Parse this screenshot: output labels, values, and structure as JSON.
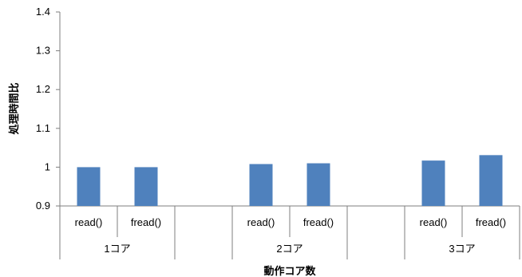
{
  "chart_data": {
    "type": "bar",
    "title": "",
    "xlabel": "動作コア数",
    "ylabel": "処理時間比",
    "ylim": [
      0.9,
      1.4
    ],
    "yticks": [
      "0.9",
      "1",
      "1.1",
      "1.2",
      "1.3",
      "1.4"
    ],
    "groups": [
      {
        "label": "1コア",
        "categories": [
          "read()",
          "fread()"
        ],
        "values": [
          1.0,
          1.0
        ]
      },
      {
        "label": "",
        "categories": [],
        "values": []
      },
      {
        "label": "2コア",
        "categories": [
          "read()",
          "fread()"
        ],
        "values": [
          1.008,
          1.01
        ]
      },
      {
        "label": "",
        "categories": [],
        "values": []
      },
      {
        "label": "3コア",
        "categories": [
          "read()",
          "fread()"
        ],
        "values": [
          1.017,
          1.031
        ]
      }
    ],
    "bar_color": "#4f81bd",
    "grid": false,
    "legend": "none"
  }
}
